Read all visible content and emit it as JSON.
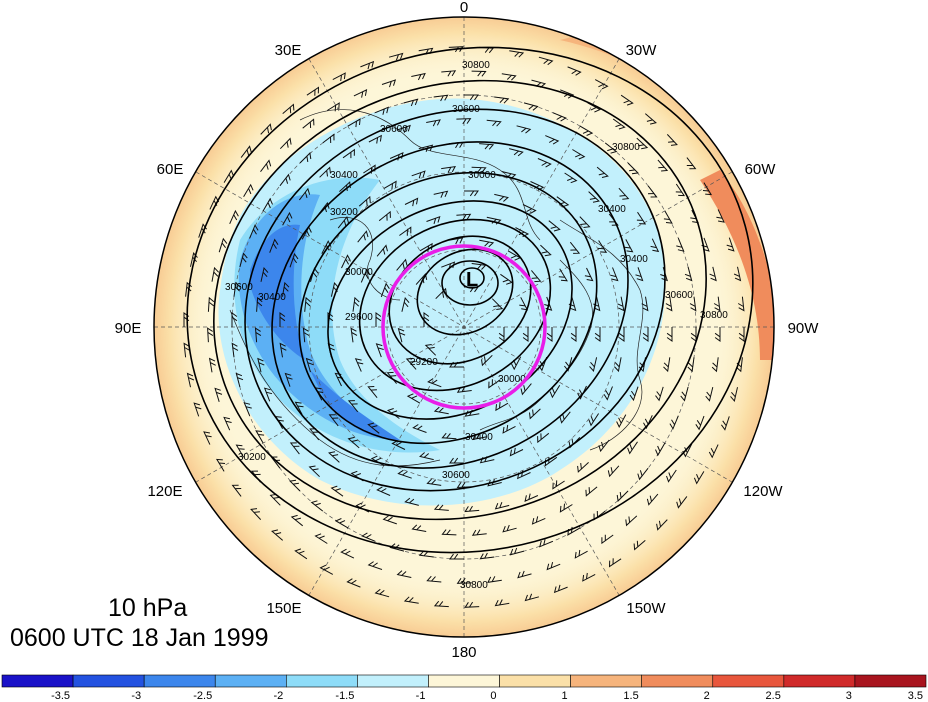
{
  "map": {
    "projection": "north-polar-stereographic",
    "level_label": "10 hPa",
    "time_label": "0600 UTC 18 Jan 1999",
    "longitude_labels": [
      {
        "id": "lon-0",
        "text": "0"
      },
      {
        "id": "lon-30w",
        "text": "30W"
      },
      {
        "id": "lon-60w",
        "text": "60W"
      },
      {
        "id": "lon-90w",
        "text": "90W"
      },
      {
        "id": "lon-120w",
        "text": "120W"
      },
      {
        "id": "lon-150w",
        "text": "150W"
      },
      {
        "id": "lon-180",
        "text": "180"
      },
      {
        "id": "lon-150e",
        "text": "150E"
      },
      {
        "id": "lon-120e",
        "text": "120E"
      },
      {
        "id": "lon-90e",
        "text": "90E"
      },
      {
        "id": "lon-60e",
        "text": "60E"
      },
      {
        "id": "lon-30e",
        "text": "30E"
      }
    ],
    "contour_labels": [
      "30800",
      "30600",
      "30600",
      "30400",
      "30200",
      "30000",
      "30000",
      "30400",
      "30600",
      "30800",
      "30400",
      "29600",
      "29200",
      "30000",
      "30400",
      "30600",
      "30800",
      "30600",
      "30200",
      "30400",
      "30800"
    ],
    "low_marker": "L",
    "circle_color": "#e81ee8"
  },
  "colorbar": {
    "colors": [
      "#1a12c8",
      "#2352e0",
      "#3c86ec",
      "#5cb0f4",
      "#8edcf8",
      "#c2f0fc",
      "#fdf6d8",
      "#fbe0a8",
      "#f6b47c",
      "#f08c5c",
      "#e8563c",
      "#d02a2a",
      "#a8141e"
    ],
    "tick_labels": [
      "-3.5",
      "-3",
      "-2.5",
      "-2",
      "-1.5",
      "-1",
      "0",
      "1",
      "1.5",
      "2",
      "2.5",
      "3",
      "3.5"
    ]
  }
}
